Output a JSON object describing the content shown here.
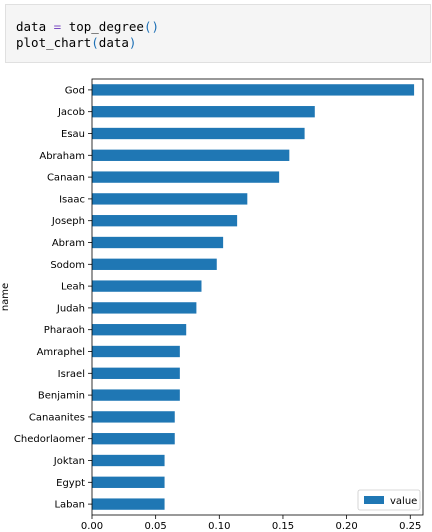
{
  "code": {
    "line1": {
      "var": "data",
      "op": "=",
      "func": "top_degree",
      "parens": "()"
    },
    "line2": {
      "func": "plot_chart",
      "open": "(",
      "arg": "data",
      "close": ")"
    }
  },
  "chart_data": {
    "type": "bar",
    "orientation": "horizontal",
    "categories": [
      "Laban",
      "Egypt",
      "Joktan",
      "Chedorlaomer",
      "Canaanites",
      "Benjamin",
      "Israel",
      "Amraphel",
      "Pharaoh",
      "Judah",
      "Leah",
      "Sodom",
      "Abram",
      "Joseph",
      "Isaac",
      "Canaan",
      "Abraham",
      "Esau",
      "Jacob",
      "God"
    ],
    "series": [
      {
        "name": "value",
        "values": [
          0.057,
          0.057,
          0.057,
          0.065,
          0.065,
          0.069,
          0.069,
          0.069,
          0.074,
          0.082,
          0.086,
          0.098,
          0.103,
          0.114,
          0.122,
          0.147,
          0.155,
          0.167,
          0.175,
          0.253
        ]
      }
    ],
    "xlim": [
      0,
      0.26
    ],
    "xticks": [
      0.0,
      0.05,
      0.1,
      0.15,
      0.2,
      0.25
    ],
    "xtick_labels": [
      "0.00",
      "0.05",
      "0.10",
      "0.15",
      "0.20",
      "0.25"
    ],
    "ylabel": "name",
    "xlabel": "",
    "legend": "lower-right",
    "bar_color": "#1f77b4"
  }
}
